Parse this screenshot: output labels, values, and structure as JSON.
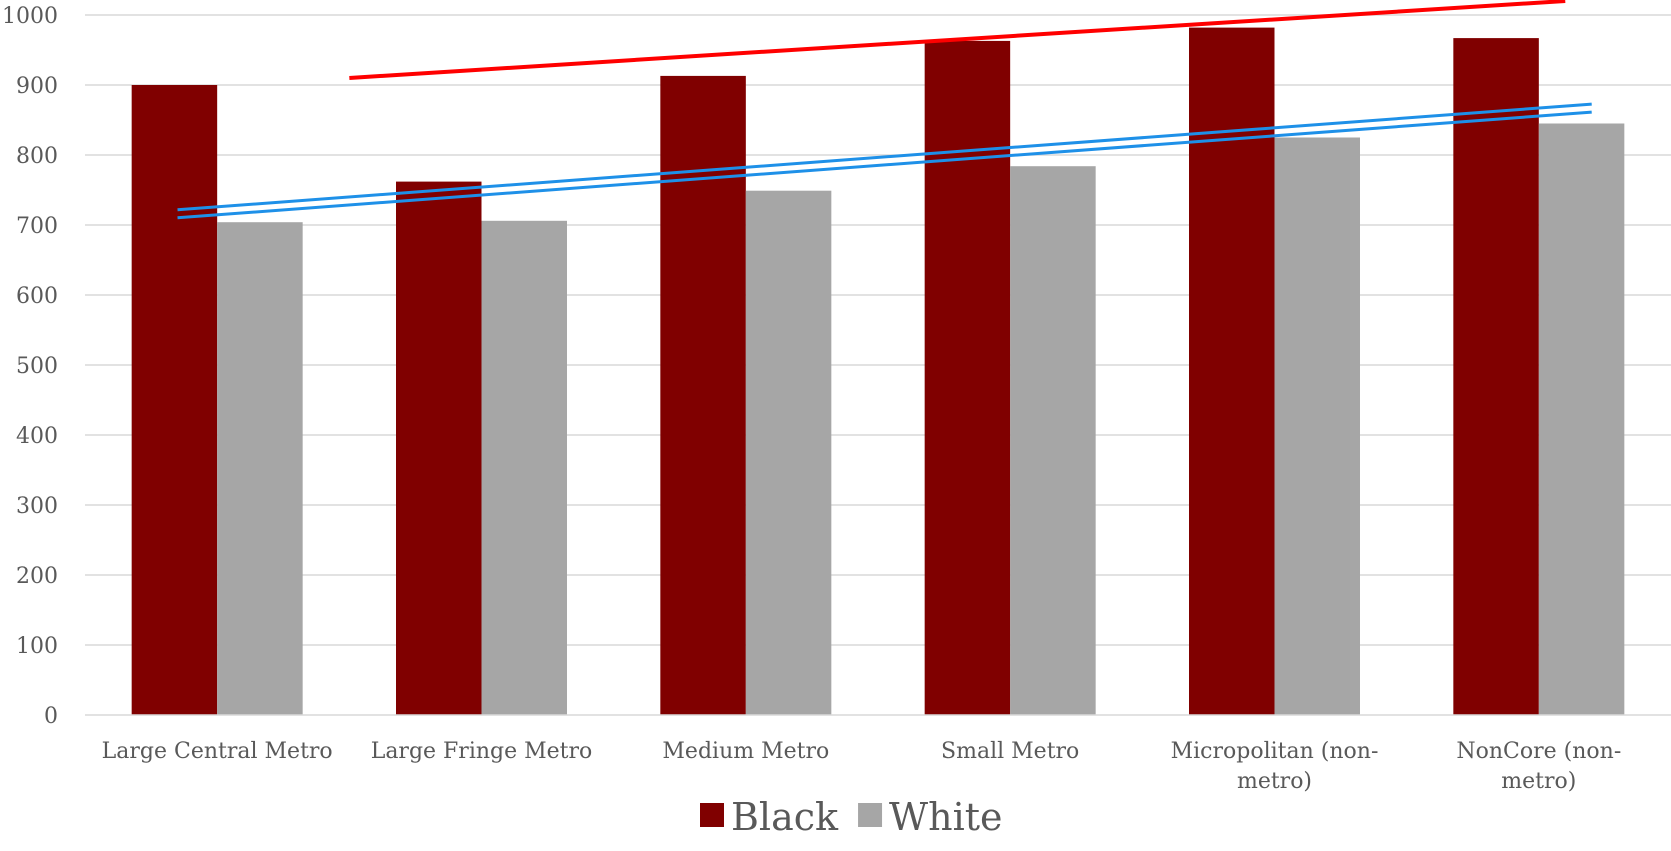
{
  "chart_data": {
    "type": "bar",
    "categories": [
      [
        "Large Central Metro"
      ],
      [
        "Large Fringe Metro"
      ],
      [
        "Medium Metro"
      ],
      [
        "Small Metro"
      ],
      [
        "Micropolitan (non-",
        "metro)"
      ],
      [
        "NonCore (non-",
        "metro)"
      ]
    ],
    "series": [
      {
        "name": "Black",
        "color": "#800000",
        "values": [
          900,
          762,
          913,
          963,
          982,
          967
        ]
      },
      {
        "name": "White",
        "color": "#A6A6A6",
        "values": [
          704,
          706,
          749,
          784,
          825,
          845
        ]
      }
    ],
    "ylim": [
      0,
      1000
    ],
    "yticks": [
      0,
      100,
      200,
      300,
      400,
      500,
      600,
      700,
      800,
      900,
      1000
    ],
    "grid": true,
    "legend_position": "bottom",
    "trendlines": [
      {
        "series": "Black",
        "color": "#FF0000",
        "style": "single",
        "start": [
          1,
          910
        ],
        "end": [
          5.6,
          1020
        ]
      },
      {
        "series": "White",
        "color": "#1E90E8",
        "style": "double",
        "start": [
          0.35,
          716
        ],
        "end": [
          5.7,
          867
        ]
      }
    ]
  }
}
